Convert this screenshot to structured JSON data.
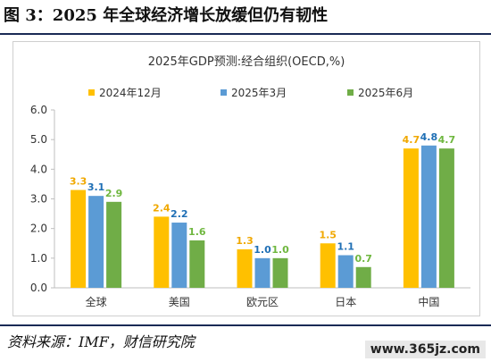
{
  "figure_title": "图 3：2025 年全球经济增长放缓但仍有韧性",
  "source": "资料来源：IMF，财信研究院",
  "watermark": "www.365jz.com",
  "colors": {
    "s1": "#FFC000",
    "s2": "#5B9BD5",
    "s3": "#70AD47",
    "label1": "#F0A800",
    "label2": "#1F6FB5",
    "label3": "#6FB73F"
  },
  "chart_data": {
    "type": "bar",
    "title": "2025年GDP预测:经合组织(OECD,%)",
    "categories": [
      "全球",
      "美国",
      "欧元区",
      "日本",
      "中国"
    ],
    "series": [
      {
        "name": "2024年12月",
        "values": [
          3.3,
          2.4,
          1.3,
          1.5,
          4.7
        ]
      },
      {
        "name": "2025年3月",
        "values": [
          3.1,
          2.2,
          1.0,
          1.1,
          4.8
        ]
      },
      {
        "name": "2025年6月",
        "values": [
          2.9,
          1.6,
          1.0,
          0.7,
          4.7
        ]
      }
    ],
    "ylim": [
      0,
      6
    ],
    "yticks": [
      "0.0",
      "1.0",
      "2.0",
      "3.0",
      "4.0",
      "5.0",
      "6.0"
    ],
    "legend_position": "top",
    "grid": false
  }
}
